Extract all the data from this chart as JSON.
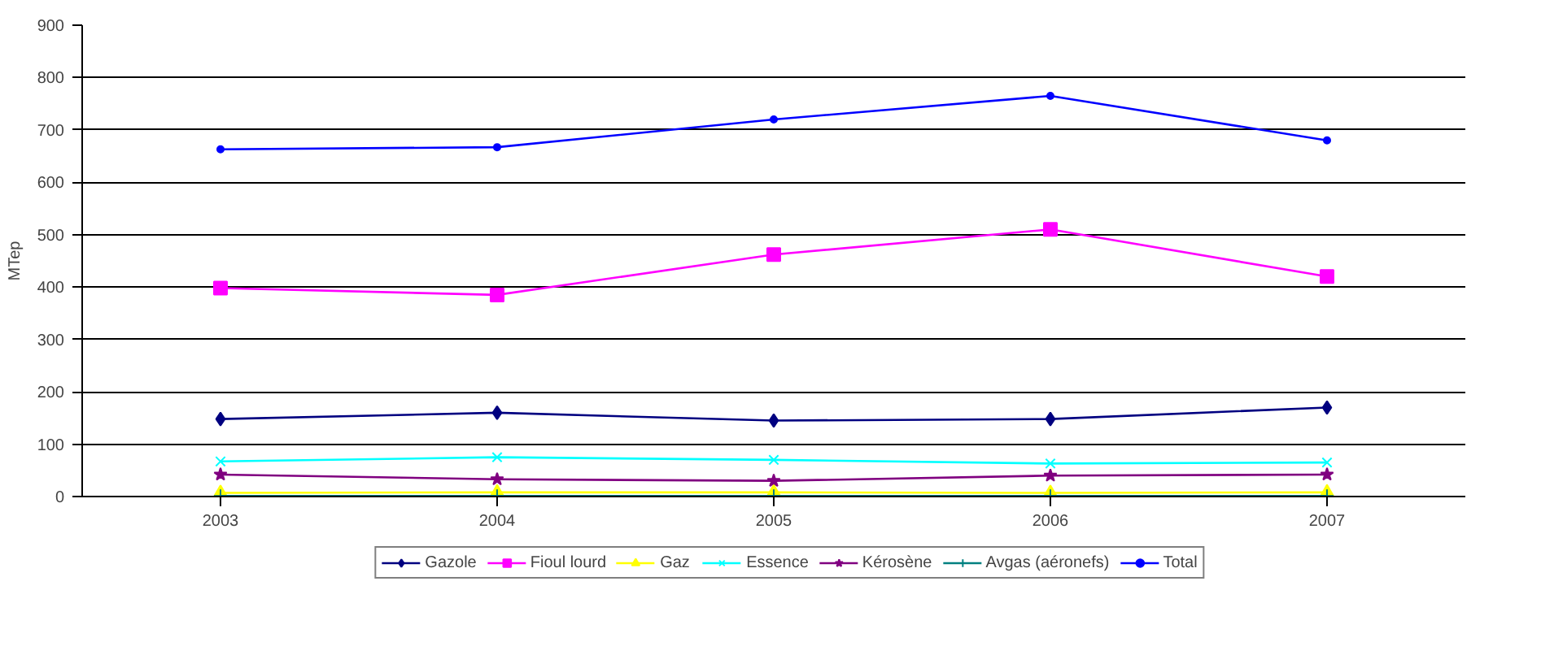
{
  "chart_data": {
    "type": "line",
    "ylabel": "MTep",
    "categories": [
      "2003",
      "2004",
      "2005",
      "2006",
      "2007"
    ],
    "ylim": [
      0,
      900
    ],
    "yticks": [
      0,
      100,
      200,
      300,
      400,
      500,
      600,
      700,
      800,
      900
    ],
    "grid": "y",
    "legend": "bottom",
    "series": [
      {
        "name": "Gazole",
        "color": "#000080",
        "marker": "diamond",
        "values": [
          148,
          160,
          145,
          148,
          170
        ]
      },
      {
        "name": "Fioul lourd",
        "color": "#ff00ff",
        "marker": "square",
        "values": [
          398,
          385,
          462,
          510,
          420
        ]
      },
      {
        "name": "Gaz",
        "color": "#ffff00",
        "marker": "triangle",
        "values": [
          7,
          8,
          8,
          7,
          8
        ]
      },
      {
        "name": "Essence",
        "color": "#00ffff",
        "marker": "x",
        "values": [
          67,
          75,
          70,
          63,
          65
        ]
      },
      {
        "name": "Kérosène",
        "color": "#800080",
        "marker": "star",
        "values": [
          42,
          33,
          30,
          40,
          42
        ]
      },
      {
        "name": "Avgas (aéronefs)",
        "color": "#008080",
        "marker": "cross",
        "values": [
          1,
          1,
          1,
          1,
          1
        ]
      },
      {
        "name": "Total",
        "color": "#0000ff",
        "marker": "circle",
        "values": [
          663,
          667,
          720,
          765,
          680
        ]
      }
    ]
  }
}
